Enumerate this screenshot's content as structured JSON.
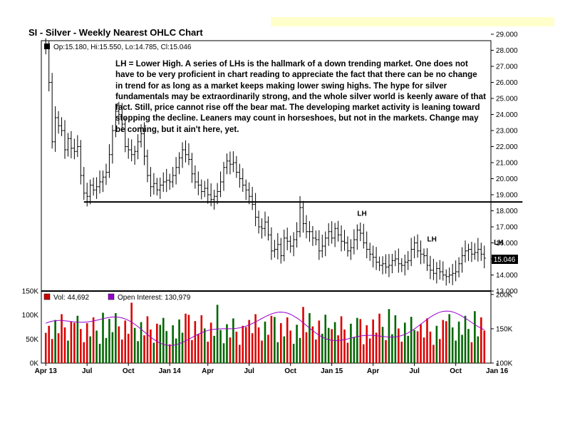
{
  "banner_color": "#ffffcc",
  "chart_data": {
    "type": "ohlc",
    "title": "SI - Silver - Weekly Nearest OHLC Chart",
    "info": {
      "label": "Op:15.180, Hi:15.550, Lo:14.785, Cl:15.046",
      "open": 15.18,
      "high": 15.55,
      "low": 14.785,
      "close": 15.046
    },
    "last_price_label": "15.046",
    "annotation": "LH = Lower High.  A series of LHs is the hallmark of a down trending market.  One does not have to be very proficient in chart reading to appreciate the fact that there can be no change in trend for as long as a market keeps making lower swing highs.  The hype for silver fundamentals may be extraordinarily strong, and the whole silver world is keenly aware of that fact.  Still, price cannot rise off the bear mat.  The developing market activity is leaning toward stopping the decline.  Leaners may count in horseshoes, but not in the markets.  Change may be coming, but it ain't here, yet.",
    "lh_labels": [
      {
        "text": "LH",
        "date_index": 98,
        "price": 17.7
      },
      {
        "text": "LH",
        "date_index": 120,
        "price": 16.1
      },
      {
        "text": "LH",
        "date_index": 141,
        "price": 15.9
      }
    ],
    "support_line": {
      "price": 18.55,
      "from_index": 12,
      "to_index": 150
    },
    "price_axis": {
      "ylim": [
        13.0,
        29.0
      ],
      "ticks": [
        "13.000",
        "14.000",
        "15.000",
        "16.000",
        "17.000",
        "18.000",
        "19.000",
        "20.000",
        "21.000",
        "22.000",
        "23.000",
        "24.000",
        "25.000",
        "26.000",
        "27.000",
        "28.000",
        "29.000"
      ]
    },
    "x_axis": {
      "labels": [
        {
          "text": "Apr 13",
          "index": 0
        },
        {
          "text": "Jul",
          "index": 13
        },
        {
          "text": "Oct",
          "index": 26
        },
        {
          "text": "Jan 14",
          "index": 39
        },
        {
          "text": "Apr",
          "index": 51
        },
        {
          "text": "Jul",
          "index": 64
        },
        {
          "text": "Oct",
          "index": 77
        },
        {
          "text": "Jan 15",
          "index": 90
        },
        {
          "text": "Apr",
          "index": 103
        },
        {
          "text": "Jul",
          "index": 116
        },
        {
          "text": "Oct",
          "index": 129
        },
        {
          "text": "Jan 16",
          "index": 142
        }
      ]
    },
    "volume_panel": {
      "legend": [
        {
          "label": "Vol: 44,692",
          "color": "#cc0000"
        },
        {
          "label": "Open Interest: 130,979",
          "color": "#9900cc"
        }
      ],
      "left_ticks": [
        "0K",
        "50K",
        "100K",
        "150K"
      ],
      "left_ylim": [
        0,
        150000
      ],
      "right_ticks": [
        "100K",
        "150K",
        "200K"
      ],
      "right_ylim": [
        100000,
        205000
      ],
      "up_color": "#006600",
      "down_color": "#dd0000",
      "oi_color": "#9900cc"
    },
    "price_key_points": [
      [
        0,
        28.1
      ],
      [
        1,
        26.0
      ],
      [
        2,
        22.3
      ],
      [
        3,
        23.8
      ],
      [
        4,
        23.3
      ],
      [
        5,
        23.0
      ],
      [
        6,
        21.8
      ],
      [
        7,
        22.5
      ],
      [
        8,
        21.9
      ],
      [
        9,
        21.7
      ],
      [
        10,
        22.0
      ],
      [
        11,
        20.2
      ],
      [
        12,
        19.1
      ],
      [
        13,
        18.9
      ],
      [
        14,
        19.6
      ],
      [
        15,
        19.3
      ],
      [
        16,
        19.5
      ],
      [
        17,
        19.8
      ],
      [
        18,
        20.1
      ],
      [
        19,
        20.4
      ],
      [
        20,
        21.5
      ],
      [
        21,
        23.0
      ],
      [
        22,
        24.2
      ],
      [
        23,
        24.0
      ],
      [
        24,
        23.4
      ],
      [
        25,
        22.0
      ],
      [
        26,
        21.8
      ],
      [
        27,
        21.5
      ],
      [
        28,
        21.7
      ],
      [
        29,
        22.3
      ],
      [
        30,
        22.8
      ],
      [
        31,
        21.4
      ],
      [
        32,
        20.2
      ],
      [
        33,
        19.5
      ],
      [
        34,
        19.7
      ],
      [
        35,
        19.3
      ],
      [
        36,
        19.6
      ],
      [
        37,
        19.8
      ],
      [
        38,
        19.9
      ],
      [
        39,
        19.8
      ],
      [
        40,
        20.2
      ],
      [
        41,
        20.7
      ],
      [
        42,
        21.3
      ],
      [
        43,
        21.8
      ],
      [
        44,
        21.5
      ],
      [
        45,
        21.2
      ],
      [
        46,
        20.3
      ],
      [
        47,
        19.8
      ],
      [
        48,
        19.6
      ],
      [
        49,
        19.2
      ],
      [
        50,
        19.4
      ],
      [
        51,
        19.0
      ],
      [
        52,
        18.7
      ],
      [
        53,
        18.9
      ],
      [
        54,
        19.2
      ],
      [
        55,
        19.8
      ],
      [
        56,
        20.7
      ],
      [
        57,
        21.1
      ],
      [
        58,
        20.9
      ],
      [
        59,
        21.0
      ],
      [
        60,
        20.4
      ],
      [
        61,
        20.0
      ],
      [
        62,
        19.6
      ],
      [
        63,
        19.3
      ],
      [
        64,
        18.9
      ],
      [
        65,
        18.4
      ],
      [
        66,
        17.6
      ],
      [
        67,
        17.0
      ],
      [
        68,
        16.9
      ],
      [
        69,
        17.3
      ],
      [
        70,
        16.5
      ],
      [
        71,
        15.5
      ],
      [
        72,
        15.6
      ],
      [
        73,
        15.9
      ],
      [
        74,
        15.2
      ],
      [
        75,
        16.3
      ],
      [
        76,
        16.1
      ],
      [
        77,
        15.8
      ],
      [
        78,
        16.2
      ],
      [
        79,
        16.7
      ],
      [
        80,
        18.2
      ],
      [
        81,
        17.2
      ],
      [
        82,
        16.7
      ],
      [
        83,
        16.7
      ],
      [
        84,
        16.3
      ],
      [
        85,
        16.2
      ],
      [
        86,
        15.5
      ],
      [
        87,
        15.8
      ],
      [
        88,
        16.3
      ],
      [
        89,
        16.7
      ],
      [
        90,
        16.3
      ],
      [
        91,
        16.9
      ],
      [
        92,
        16.5
      ],
      [
        93,
        16.1
      ],
      [
        94,
        16.0
      ],
      [
        95,
        15.5
      ],
      [
        96,
        15.7
      ],
      [
        97,
        16.2
      ],
      [
        98,
        16.8
      ],
      [
        99,
        16.6
      ],
      [
        100,
        16.0
      ],
      [
        101,
        15.6
      ],
      [
        102,
        15.3
      ],
      [
        103,
        15.1
      ],
      [
        104,
        14.8
      ],
      [
        105,
        14.6
      ],
      [
        106,
        14.7
      ],
      [
        107,
        14.5
      ],
      [
        108,
        14.6
      ],
      [
        109,
        14.9
      ],
      [
        110,
        15.0
      ],
      [
        111,
        14.7
      ],
      [
        112,
        14.6
      ],
      [
        113,
        14.8
      ],
      [
        114,
        14.9
      ],
      [
        115,
        15.6
      ],
      [
        116,
        16.0
      ],
      [
        117,
        15.5
      ],
      [
        118,
        15.3
      ],
      [
        119,
        15.2
      ],
      [
        120,
        14.6
      ],
      [
        121,
        14.3
      ],
      [
        122,
        14.1
      ],
      [
        123,
        14.4
      ],
      [
        124,
        14.2
      ],
      [
        125,
        14.0
      ],
      [
        126,
        13.9
      ],
      [
        127,
        14.0
      ],
      [
        128,
        14.1
      ],
      [
        129,
        14.2
      ],
      [
        130,
        14.7
      ],
      [
        131,
        15.2
      ],
      [
        132,
        15.5
      ],
      [
        133,
        15.6
      ],
      [
        134,
        15.3
      ],
      [
        135,
        15.4
      ],
      [
        136,
        15.6
      ],
      [
        137,
        15.3
      ],
      [
        138,
        15.05
      ]
    ]
  }
}
